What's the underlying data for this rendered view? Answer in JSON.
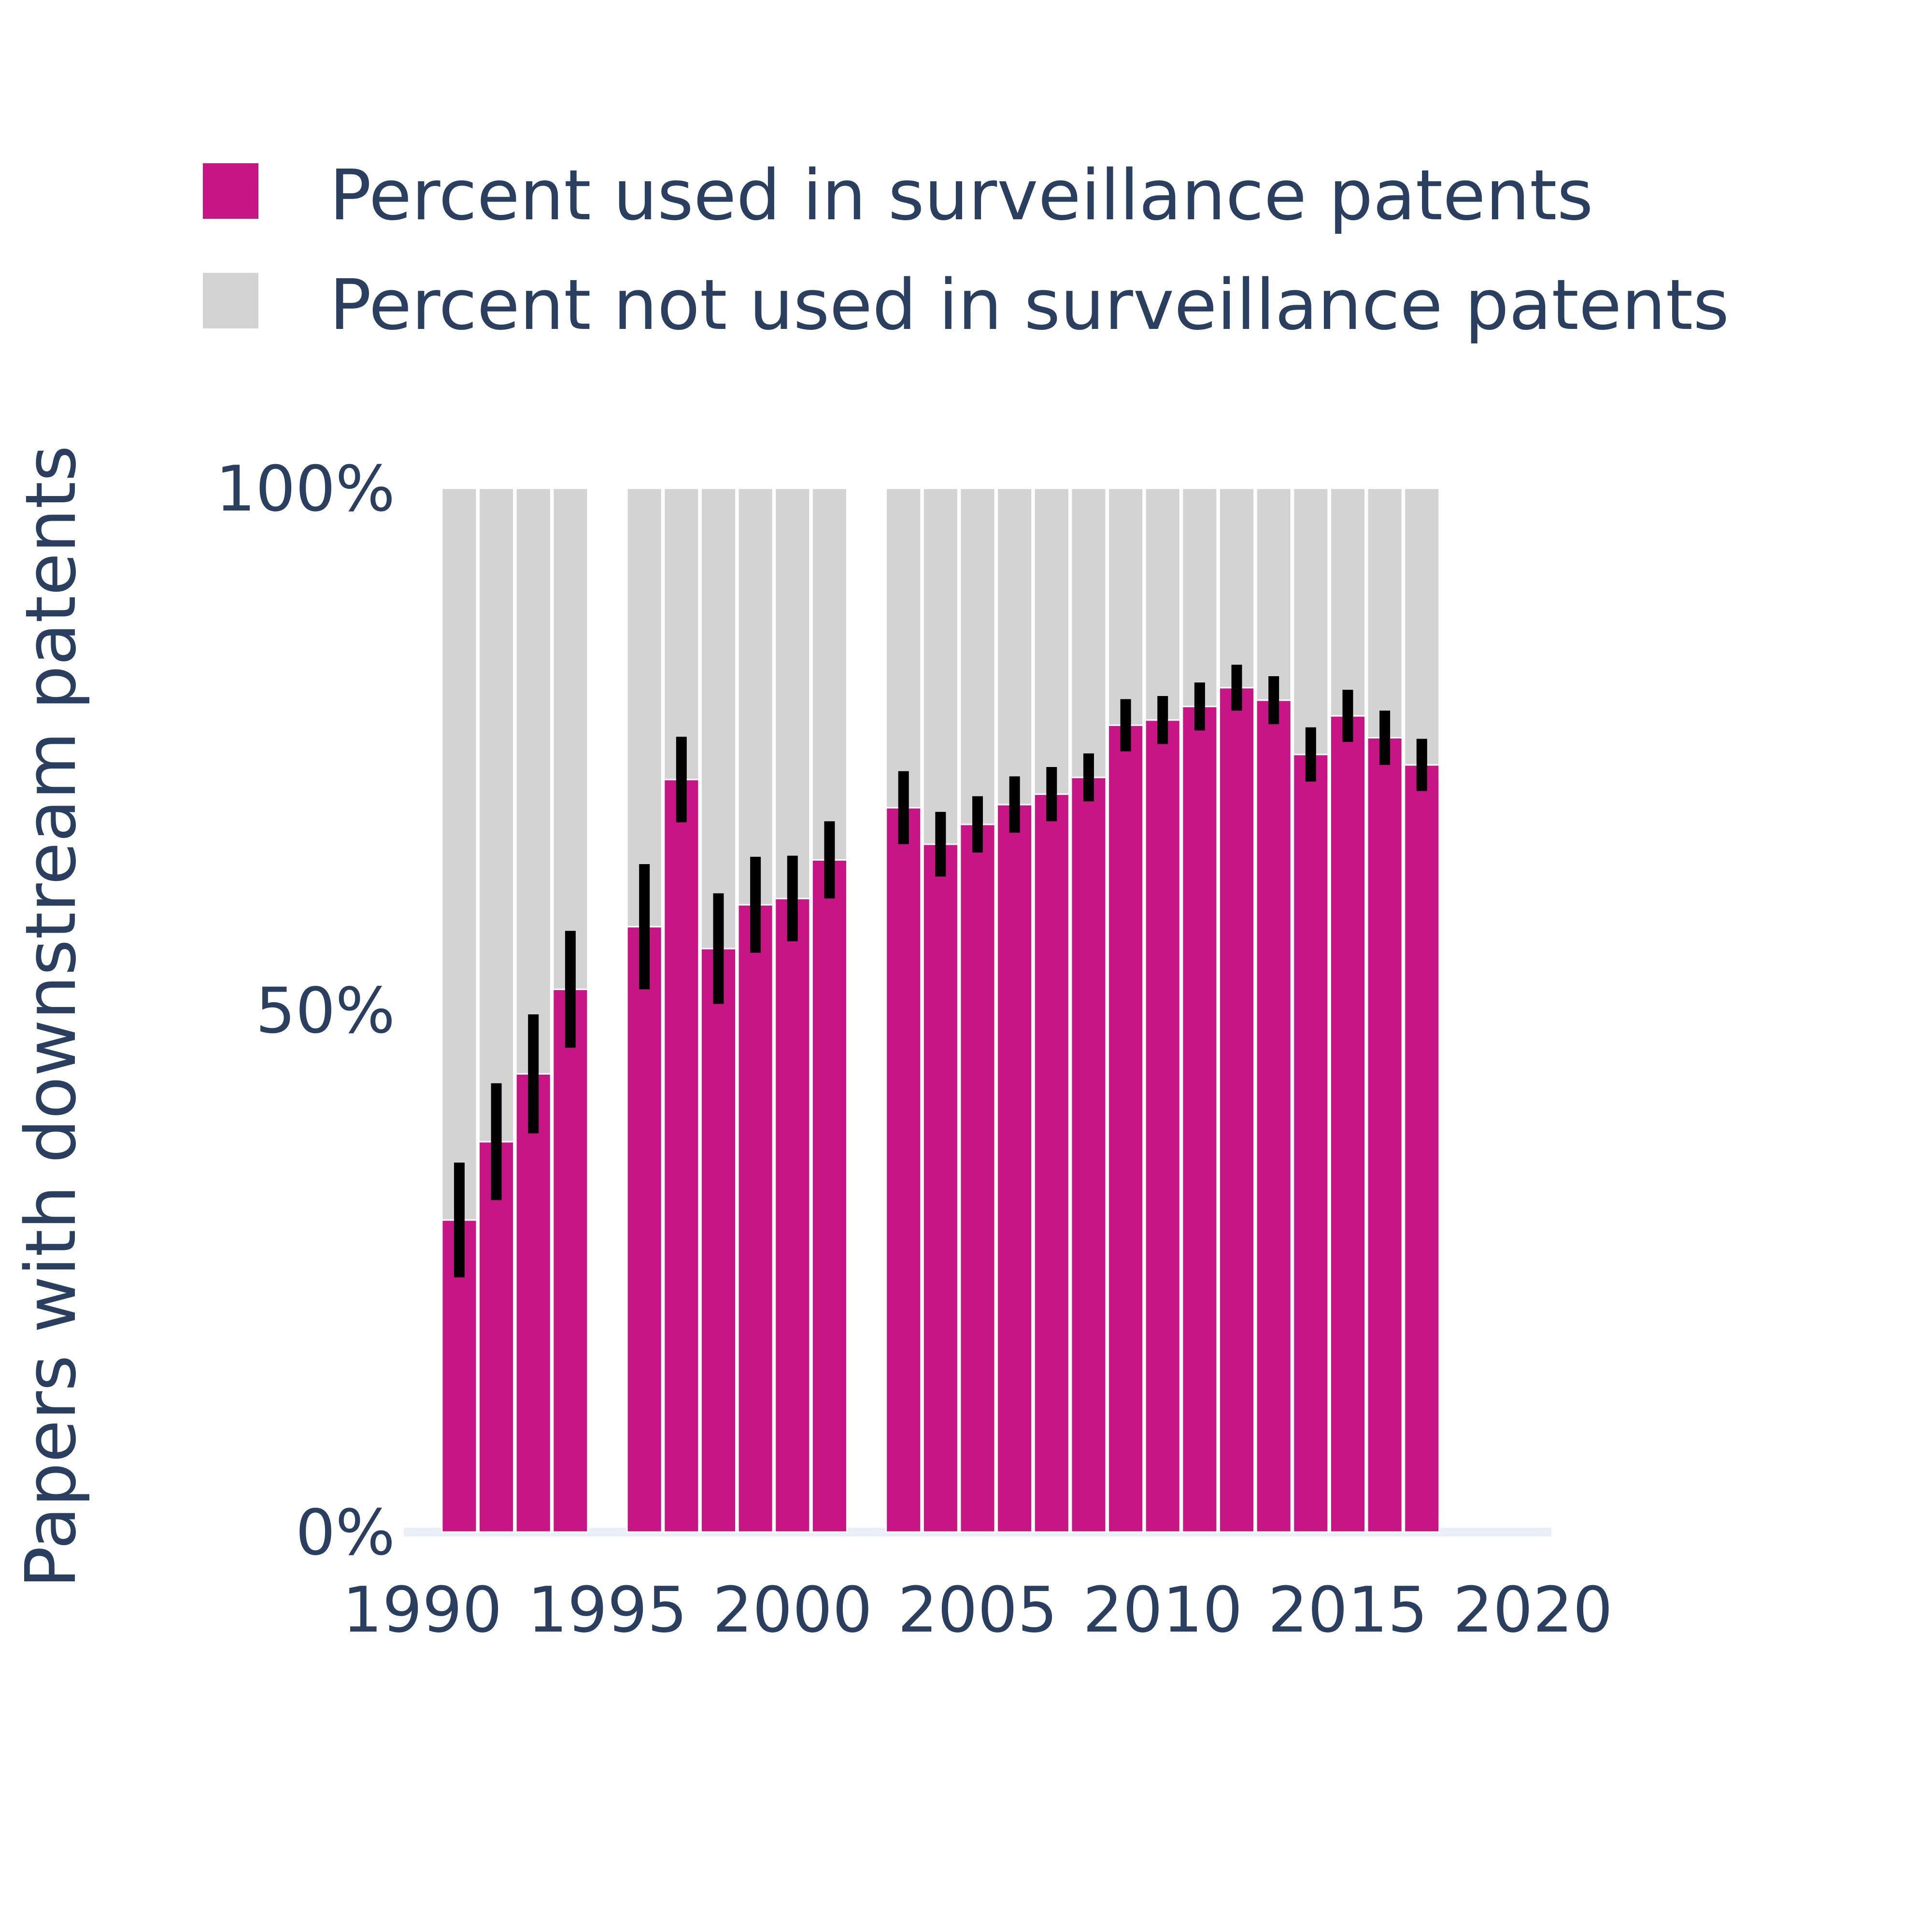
{
  "chart_data": {
    "type": "bar",
    "stacked": true,
    "x": [
      1991,
      1992,
      1993,
      1994,
      1996,
      1997,
      1998,
      1999,
      2000,
      2001,
      2003,
      2004,
      2005,
      2006,
      2007,
      2008,
      2009,
      2010,
      2011,
      2012,
      2013,
      2014,
      2015,
      2016,
      2017
    ],
    "series": [
      {
        "name": "Percent used in surveillance patents",
        "color": "#c71585",
        "values": [
          29.9,
          37.4,
          43.9,
          52.0,
          58.0,
          72.1,
          55.9,
          60.1,
          60.7,
          64.4,
          69.4,
          65.9,
          67.8,
          69.7,
          70.7,
          72.3,
          77.3,
          77.8,
          79.1,
          80.9,
          79.7,
          74.5,
          78.2,
          76.1,
          73.5
        ],
        "error": [
          5.5,
          5.6,
          5.7,
          5.6,
          6.0,
          4.1,
          5.3,
          4.6,
          4.1,
          3.7,
          3.5,
          3.1,
          2.7,
          2.7,
          2.6,
          2.3,
          2.5,
          2.3,
          2.3,
          2.2,
          2.3,
          2.6,
          2.5,
          2.6,
          2.5
        ]
      },
      {
        "name": "Percent not used in surveillance patents",
        "color": "#d3d3d3",
        "values": [
          70.1,
          62.6,
          56.1,
          48.0,
          42.0,
          27.9,
          44.1,
          39.9,
          39.3,
          35.6,
          30.6,
          34.1,
          32.2,
          30.3,
          29.3,
          27.7,
          22.7,
          22.2,
          20.9,
          19.1,
          20.3,
          25.5,
          21.8,
          23.9,
          26.5
        ]
      }
    ],
    "xlim": [
      1989.5,
      2020.5
    ],
    "ylim": [
      0,
      100
    ],
    "x_ticks": [
      1990,
      1995,
      2000,
      2005,
      2010,
      2015,
      2020
    ],
    "x_tick_labels": [
      "1990",
      "1995",
      "2000",
      "2005",
      "2010",
      "2015",
      "2020"
    ],
    "y_ticks": [
      0,
      50,
      100
    ],
    "y_tick_labels": [
      "0%",
      "50%",
      "100%"
    ],
    "ylabel": "Papers with downstream patents",
    "xlabel": "",
    "legend_position": "top-left",
    "grid": false
  }
}
